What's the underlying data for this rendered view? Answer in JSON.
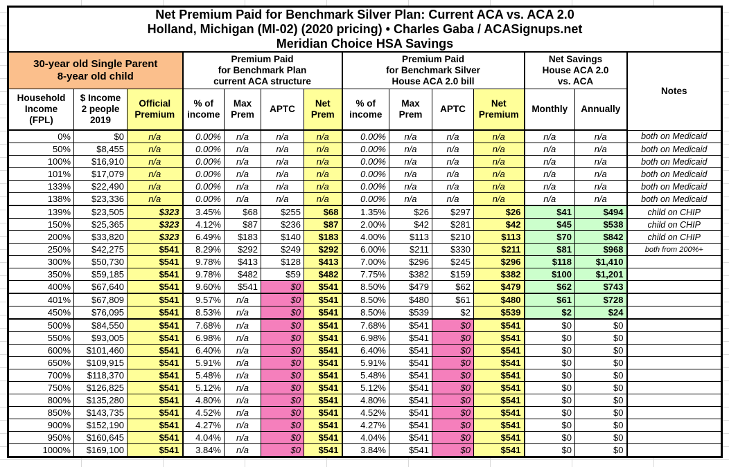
{
  "colors": {
    "orange": "#FBBF8C",
    "yellow": "#FFFF99",
    "pink": "#F57FBC",
    "green": "#CCFFCC"
  },
  "chart_data": {
    "type": "table",
    "title": [
      "Net Premium Paid for Benchmark Silver Plan: Current ACA vs. ACA 2.0",
      "Holland, Michigan (MI-02) (2020 pricing) • Charles Gaba / ACASignups.net",
      "Meridian Choice HSA Savings"
    ],
    "subject": "30-year old Single Parent\n8-year old child",
    "column_groups": [
      "Premium Paid\nfor Benchmark Plan\ncurrent ACA structure",
      "Premium Paid\nfor Benchmark Silver\nHouse ACA 2.0 bill",
      "Net Savings\nHouse ACA 2.0\nvs. ACA"
    ],
    "notes_label": "Notes",
    "columns": [
      "Household\nIncome\n(FPL)",
      "$ Income\n2 people\n2019",
      "Official\nPremium",
      "% of\nincome",
      "Max\nPrem",
      "APTC",
      "Net\nPrem",
      "% of\nincome",
      "Max\nPrem",
      "APTC",
      "Net\nPremium",
      "Monthly",
      "Annually"
    ],
    "sep_before": [
      "139%",
      "401%",
      "500%"
    ],
    "rows": [
      [
        "0%",
        "$0",
        "n/a",
        "0.00%",
        "n/a",
        "n/a",
        "n/a",
        "0.00%",
        "n/a",
        "n/a",
        "n/a",
        "n/a",
        "n/a",
        "both on Medicaid"
      ],
      [
        "50%",
        "$8,455",
        "n/a",
        "0.00%",
        "n/a",
        "n/a",
        "n/a",
        "0.00%",
        "n/a",
        "n/a",
        "n/a",
        "n/a",
        "n/a",
        "both on Medicaid"
      ],
      [
        "100%",
        "$16,910",
        "n/a",
        "0.00%",
        "n/a",
        "n/a",
        "n/a",
        "0.00%",
        "n/a",
        "n/a",
        "n/a",
        "n/a",
        "n/a",
        "both on Medicaid"
      ],
      [
        "101%",
        "$17,079",
        "n/a",
        "0.00%",
        "n/a",
        "n/a",
        "n/a",
        "0.00%",
        "n/a",
        "n/a",
        "n/a",
        "n/a",
        "n/a",
        "both on Medicaid"
      ],
      [
        "133%",
        "$22,490",
        "n/a",
        "0.00%",
        "n/a",
        "n/a",
        "n/a",
        "0.00%",
        "n/a",
        "n/a",
        "n/a",
        "n/a",
        "n/a",
        "both on Medicaid"
      ],
      [
        "138%",
        "$23,336",
        "n/a",
        "0.00%",
        "n/a",
        "n/a",
        "n/a",
        "0.00%",
        "n/a",
        "n/a",
        "n/a",
        "n/a",
        "n/a",
        "both on Medicaid"
      ],
      [
        "139%",
        "$23,505",
        "$323",
        "3.45%",
        "$68",
        "$255",
        "$68",
        "1.35%",
        "$26",
        "$297",
        "$26",
        "$41",
        "$494",
        "child on CHIP"
      ],
      [
        "150%",
        "$25,365",
        "$323",
        "4.12%",
        "$87",
        "$236",
        "$87",
        "2.00%",
        "$42",
        "$281",
        "$42",
        "$45",
        "$538",
        "child on CHIP"
      ],
      [
        "200%",
        "$33,820",
        "$323",
        "6.49%",
        "$183",
        "$140",
        "$183",
        "4.00%",
        "$113",
        "$210",
        "$113",
        "$70",
        "$842",
        "child on CHIP"
      ],
      [
        "250%",
        "$42,275",
        "$541",
        "8.29%",
        "$292",
        "$249",
        "$292",
        "6.00%",
        "$211",
        "$330",
        "$211",
        "$81",
        "$968",
        "both from 200%+"
      ],
      [
        "300%",
        "$50,730",
        "$541",
        "9.78%",
        "$413",
        "$128",
        "$413",
        "7.00%",
        "$296",
        "$245",
        "$296",
        "$118",
        "$1,410",
        ""
      ],
      [
        "350%",
        "$59,185",
        "$541",
        "9.78%",
        "$482",
        "$59",
        "$482",
        "7.75%",
        "$382",
        "$159",
        "$382",
        "$100",
        "$1,201",
        ""
      ],
      [
        "400%",
        "$67,640",
        "$541",
        "9.60%",
        "$541",
        "$0",
        "$541",
        "8.50%",
        "$479",
        "$62",
        "$479",
        "$62",
        "$743",
        ""
      ],
      [
        "401%",
        "$67,809",
        "$541",
        "9.57%",
        "n/a",
        "$0",
        "$541",
        "8.50%",
        "$480",
        "$61",
        "$480",
        "$61",
        "$728",
        ""
      ],
      [
        "450%",
        "$76,095",
        "$541",
        "8.53%",
        "n/a",
        "$0",
        "$541",
        "8.50%",
        "$539",
        "$2",
        "$539",
        "$2",
        "$24",
        ""
      ],
      [
        "500%",
        "$84,550",
        "$541",
        "7.68%",
        "n/a",
        "$0",
        "$541",
        "7.68%",
        "$541",
        "$0",
        "$541",
        "$0",
        "$0",
        ""
      ],
      [
        "550%",
        "$93,005",
        "$541",
        "6.98%",
        "n/a",
        "$0",
        "$541",
        "6.98%",
        "$541",
        "$0",
        "$541",
        "$0",
        "$0",
        ""
      ],
      [
        "600%",
        "$101,460",
        "$541",
        "6.40%",
        "n/a",
        "$0",
        "$541",
        "6.40%",
        "$541",
        "$0",
        "$541",
        "$0",
        "$0",
        ""
      ],
      [
        "650%",
        "$109,915",
        "$541",
        "5.91%",
        "n/a",
        "$0",
        "$541",
        "5.91%",
        "$541",
        "$0",
        "$541",
        "$0",
        "$0",
        ""
      ],
      [
        "700%",
        "$118,370",
        "$541",
        "5.48%",
        "n/a",
        "$0",
        "$541",
        "5.48%",
        "$541",
        "$0",
        "$541",
        "$0",
        "$0",
        ""
      ],
      [
        "750%",
        "$126,825",
        "$541",
        "5.12%",
        "n/a",
        "$0",
        "$541",
        "5.12%",
        "$541",
        "$0",
        "$541",
        "$0",
        "$0",
        ""
      ],
      [
        "800%",
        "$135,280",
        "$541",
        "4.80%",
        "n/a",
        "$0",
        "$541",
        "4.80%",
        "$541",
        "$0",
        "$541",
        "$0",
        "$0",
        ""
      ],
      [
        "850%",
        "$143,735",
        "$541",
        "4.52%",
        "n/a",
        "$0",
        "$541",
        "4.52%",
        "$541",
        "$0",
        "$541",
        "$0",
        "$0",
        ""
      ],
      [
        "900%",
        "$152,190",
        "$541",
        "4.27%",
        "n/a",
        "$0",
        "$541",
        "4.27%",
        "$541",
        "$0",
        "$541",
        "$0",
        "$0",
        ""
      ],
      [
        "950%",
        "$160,645",
        "$541",
        "4.04%",
        "n/a",
        "$0",
        "$541",
        "4.04%",
        "$541",
        "$0",
        "$541",
        "$0",
        "$0",
        ""
      ],
      [
        "1000%",
        "$169,100",
        "$541",
        "3.84%",
        "n/a",
        "$0",
        "$541",
        "3.84%",
        "$541",
        "$0",
        "$541",
        "$0",
        "$0",
        ""
      ]
    ]
  }
}
